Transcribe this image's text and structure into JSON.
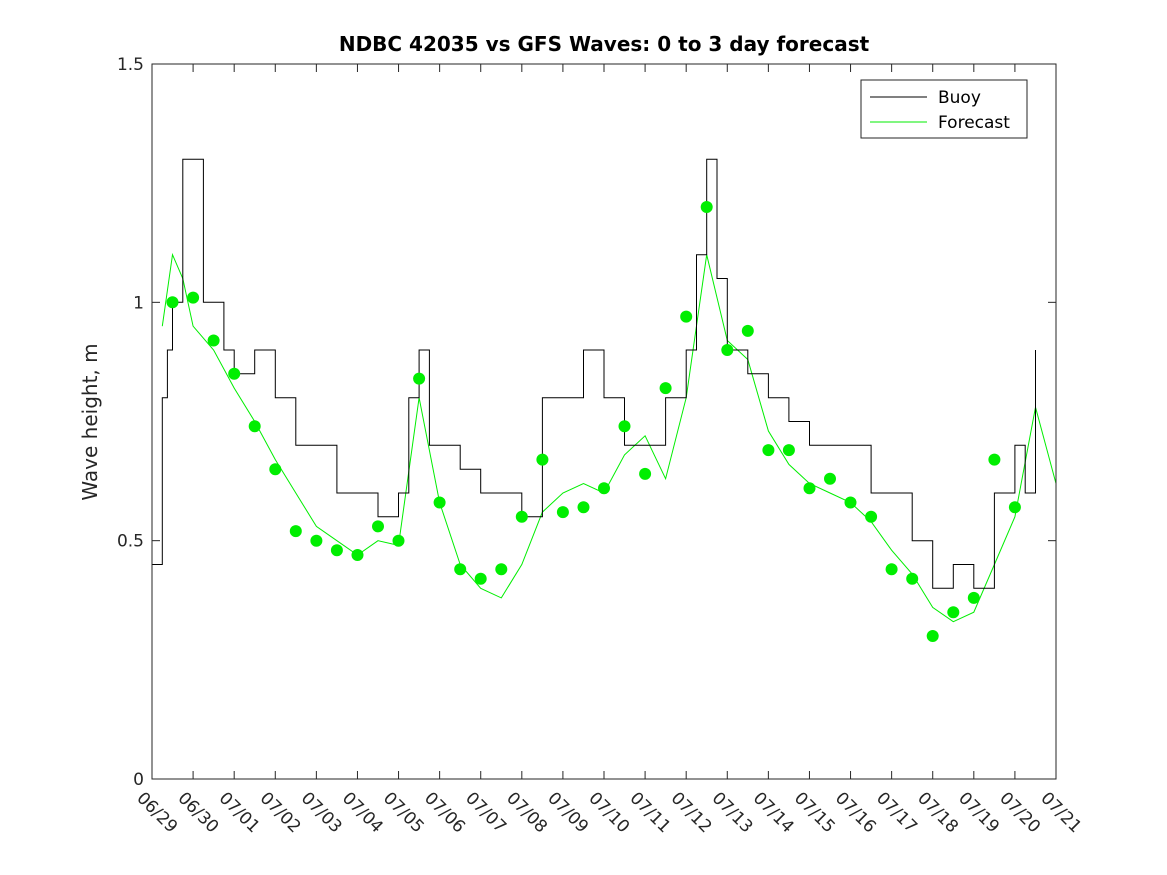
{
  "chart_data": {
    "type": "line",
    "title": "NDBC 42035 vs GFS Waves: 0 to 3 day forecast",
    "xlabel": "",
    "ylabel": "Wave height, m",
    "xlim": [
      "06/29",
      "07/21"
    ],
    "ylim": [
      0,
      1.5
    ],
    "x_tick_labels": [
      "06/29",
      "06/30",
      "07/01",
      "07/02",
      "07/03",
      "07/04",
      "07/05",
      "07/06",
      "07/07",
      "07/08",
      "07/09",
      "07/10",
      "07/11",
      "07/12",
      "07/13",
      "07/14",
      "07/15",
      "07/16",
      "07/17",
      "07/18",
      "07/19",
      "07/20",
      "07/21"
    ],
    "y_ticks": [
      0,
      0.5,
      1,
      1.5
    ],
    "y_tick_labels": [
      "0",
      "0.5",
      "1",
      "1.5"
    ],
    "grid": false,
    "legend": {
      "placement": "top-right",
      "entries": [
        "Buoy",
        "Forecast"
      ]
    },
    "colors": {
      "buoy": "#000000",
      "forecast": "#00ee00",
      "dots": "#00ee00"
    },
    "series": [
      {
        "name": "Buoy",
        "x": [
          "06/29 00:00",
          "06/29 06:00",
          "06/29 09:00",
          "06/29 12:00",
          "06/29 18:00",
          "06/30 00:00",
          "06/30 06:00",
          "06/30 12:00",
          "06/30 18:00",
          "07/01 00:00",
          "07/01 12:00",
          "07/02 00:00",
          "07/02 12:00",
          "07/03 00:00",
          "07/03 12:00",
          "07/04 00:00",
          "07/04 12:00",
          "07/05 00:00",
          "07/05 06:00",
          "07/05 12:00",
          "07/05 18:00",
          "07/06 00:00",
          "07/06 12:00",
          "07/07 00:00",
          "07/07 12:00",
          "07/08 00:00",
          "07/08 12:00",
          "07/09 00:00",
          "07/09 12:00",
          "07/10 00:00",
          "07/10 12:00",
          "07/11 00:00",
          "07/11 12:00",
          "07/12 00:00",
          "07/12 06:00",
          "07/12 12:00",
          "07/12 18:00",
          "07/13 00:00",
          "07/13 12:00",
          "07/14 00:00",
          "07/14 12:00",
          "07/15 00:00",
          "07/15 12:00",
          "07/16 00:00",
          "07/16 12:00",
          "07/17 00:00",
          "07/17 12:00",
          "07/18 00:00",
          "07/18 12:00",
          "07/19 00:00",
          "07/19 12:00",
          "07/20 00:00",
          "07/20 06:00",
          "07/20 12:00"
        ],
        "values": [
          0.45,
          0.8,
          0.9,
          1.0,
          1.3,
          1.3,
          1.0,
          1.0,
          0.9,
          0.85,
          0.9,
          0.8,
          0.7,
          0.7,
          0.6,
          0.6,
          0.55,
          0.6,
          0.8,
          0.9,
          0.7,
          0.7,
          0.65,
          0.6,
          0.6,
          0.55,
          0.8,
          0.8,
          0.9,
          0.8,
          0.7,
          0.7,
          0.8,
          0.9,
          1.1,
          1.3,
          1.05,
          0.9,
          0.85,
          0.8,
          0.75,
          0.7,
          0.7,
          0.7,
          0.6,
          0.6,
          0.5,
          0.4,
          0.45,
          0.4,
          0.6,
          0.7,
          0.6,
          0.9
        ]
      },
      {
        "name": "Forecast",
        "x": [
          "06/29 06:00",
          "06/29 12:00",
          "06/29 18:00",
          "06/30 00:00",
          "06/30 12:00",
          "07/01 00:00",
          "07/01 12:00",
          "07/02 00:00",
          "07/02 12:00",
          "07/03 00:00",
          "07/03 12:00",
          "07/04 00:00",
          "07/04 12:00",
          "07/05 00:00",
          "07/05 12:00",
          "07/06 00:00",
          "07/06 12:00",
          "07/07 00:00",
          "07/07 12:00",
          "07/08 00:00",
          "07/08 12:00",
          "07/09 00:00",
          "07/09 12:00",
          "07/10 00:00",
          "07/10 12:00",
          "07/11 00:00",
          "07/11 12:00",
          "07/12 00:00",
          "07/12 12:00",
          "07/13 00:00",
          "07/13 12:00",
          "07/14 00:00",
          "07/14 12:00",
          "07/15 00:00",
          "07/15 12:00",
          "07/16 00:00",
          "07/16 12:00",
          "07/17 00:00",
          "07/17 12:00",
          "07/18 00:00",
          "07/18 12:00",
          "07/19 00:00",
          "07/19 12:00",
          "07/20 00:00",
          "07/20 12:00",
          "07/21 00:00"
        ],
        "values": [
          0.95,
          1.1,
          1.05,
          0.95,
          0.9,
          0.82,
          0.75,
          0.67,
          0.6,
          0.53,
          0.5,
          0.47,
          0.5,
          0.49,
          0.8,
          0.58,
          0.45,
          0.4,
          0.38,
          0.45,
          0.56,
          0.6,
          0.62,
          0.6,
          0.68,
          0.72,
          0.63,
          0.8,
          1.1,
          0.92,
          0.88,
          0.73,
          0.66,
          0.62,
          0.6,
          0.58,
          0.54,
          0.48,
          0.43,
          0.36,
          0.33,
          0.35,
          0.45,
          0.55,
          0.78,
          0.62
        ]
      }
    ],
    "verification_points": {
      "x": [
        "06/29 12:00",
        "06/30 00:00",
        "06/30 12:00",
        "07/01 00:00",
        "07/01 12:00",
        "07/02 00:00",
        "07/02 12:00",
        "07/03 00:00",
        "07/03 12:00",
        "07/04 00:00",
        "07/04 12:00",
        "07/05 00:00",
        "07/05 12:00",
        "07/06 00:00",
        "07/06 12:00",
        "07/07 00:00",
        "07/07 12:00",
        "07/08 00:00",
        "07/08 12:00",
        "07/09 00:00",
        "07/09 12:00",
        "07/10 00:00",
        "07/10 12:00",
        "07/11 00:00",
        "07/11 12:00",
        "07/12 00:00",
        "07/12 12:00",
        "07/13 00:00",
        "07/13 12:00",
        "07/14 00:00",
        "07/14 12:00",
        "07/15 00:00",
        "07/15 12:00",
        "07/16 00:00",
        "07/16 12:00",
        "07/17 00:00",
        "07/17 12:00",
        "07/18 00:00",
        "07/18 12:00",
        "07/19 00:00",
        "07/19 12:00",
        "07/20 00:00"
      ],
      "values": [
        1.0,
        1.01,
        0.92,
        0.85,
        0.74,
        0.65,
        0.52,
        0.5,
        0.48,
        0.47,
        0.53,
        0.5,
        0.84,
        0.58,
        0.44,
        0.42,
        0.44,
        0.55,
        0.67,
        0.56,
        0.57,
        0.61,
        0.74,
        0.64,
        0.82,
        0.97,
        1.2,
        0.9,
        0.94,
        0.69,
        0.69,
        0.61,
        0.63,
        0.58,
        0.55,
        0.44,
        0.42,
        0.3,
        0.35,
        0.38,
        0.67,
        0.57
      ]
    }
  }
}
